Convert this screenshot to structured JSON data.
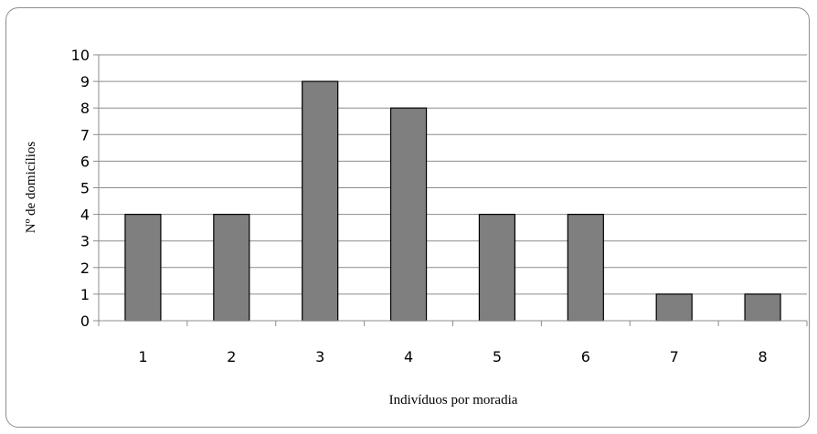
{
  "chart_data": {
    "type": "bar",
    "title": "",
    "xlabel": "Indivíduos por moradia",
    "ylabel": "Nº de domicílios",
    "categories": [
      "1",
      "2",
      "3",
      "4",
      "5",
      "6",
      "7",
      "8"
    ],
    "values": [
      4,
      4,
      9,
      8,
      4,
      4,
      1,
      1
    ],
    "ylim": [
      0,
      10
    ],
    "yticks": [
      "0",
      "1",
      "2",
      "3",
      "4",
      "5",
      "6",
      "7",
      "8",
      "9",
      "10"
    ],
    "grid": true,
    "legend": "none",
    "colors": {
      "bar_fill": "#7f7f7f",
      "bar_stroke": "#000000",
      "grid": "#8c8c8c",
      "axis": "#8c8c8c",
      "frame": "#8c8c8c"
    }
  }
}
